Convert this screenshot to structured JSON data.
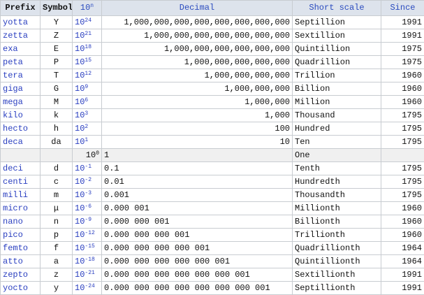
{
  "table": {
    "columns": [
      "Prefix",
      "Symbol",
      {
        "base": "10",
        "exp": "n"
      },
      "Decimal",
      "Short scale",
      "Since"
    ],
    "rows": [
      {
        "prefix": "yotta",
        "symbol": "Y",
        "power": {
          "base": "10",
          "exp": "24"
        },
        "decimal": "1,000,000,000,000,000,000,000,000",
        "scale": "Septillion",
        "since": "1991"
      },
      {
        "prefix": "zetta",
        "symbol": "Z",
        "power": {
          "base": "10",
          "exp": "21"
        },
        "decimal": "1,000,000,000,000,000,000,000",
        "scale": "Sextillion",
        "since": "1991"
      },
      {
        "prefix": "exa",
        "symbol": "E",
        "power": {
          "base": "10",
          "exp": "18"
        },
        "decimal": "1,000,000,000,000,000,000",
        "scale": "Quintillion",
        "since": "1975"
      },
      {
        "prefix": "peta",
        "symbol": "P",
        "power": {
          "base": "10",
          "exp": "15"
        },
        "decimal": "1,000,000,000,000,000",
        "scale": "Quadrillion",
        "since": "1975"
      },
      {
        "prefix": "tera",
        "symbol": "T",
        "power": {
          "base": "10",
          "exp": "12"
        },
        "decimal": "1,000,000,000,000",
        "scale": "Trillion",
        "since": "1960"
      },
      {
        "prefix": "giga",
        "symbol": "G",
        "power": {
          "base": "10",
          "exp": "9"
        },
        "decimal": "1,000,000,000",
        "scale": "Billion",
        "since": "1960"
      },
      {
        "prefix": "mega",
        "symbol": "M",
        "power": {
          "base": "10",
          "exp": "6"
        },
        "decimal": "1,000,000",
        "scale": "Million",
        "since": "1960"
      },
      {
        "prefix": "kilo",
        "symbol": "k",
        "power": {
          "base": "10",
          "exp": "3"
        },
        "decimal": "1,000",
        "scale": "Thousand",
        "since": "1795"
      },
      {
        "prefix": "hecto",
        "symbol": "h",
        "power": {
          "base": "10",
          "exp": "2"
        },
        "decimal": "100",
        "scale": "Hundred",
        "since": "1795"
      },
      {
        "prefix": "deca",
        "symbol": "da",
        "power": {
          "base": "10",
          "exp": "1"
        },
        "decimal": "10",
        "scale": "Ten",
        "since": "1795"
      },
      {
        "power": {
          "base": "10",
          "exp": "0"
        },
        "decimal": "1",
        "scale": "One"
      },
      {
        "prefix": "deci",
        "symbol": "d",
        "power": {
          "base": "10",
          "exp": "-1"
        },
        "decimal": "0.1",
        "scale": "Tenth",
        "since": "1795"
      },
      {
        "prefix": "centi",
        "symbol": "c",
        "power": {
          "base": "10",
          "exp": "-2"
        },
        "decimal": "0.01",
        "scale": "Hundredth",
        "since": "1795"
      },
      {
        "prefix": "milli",
        "symbol": "m",
        "power": {
          "base": "10",
          "exp": "-3"
        },
        "decimal": "0.001",
        "scale": "Thousandth",
        "since": "1795"
      },
      {
        "prefix": "micro",
        "symbol": "μ",
        "power": {
          "base": "10",
          "exp": "-6"
        },
        "decimal": "0.000 001",
        "scale": "Millionth",
        "since": "1960"
      },
      {
        "prefix": "nano",
        "symbol": "n",
        "power": {
          "base": "10",
          "exp": "-9"
        },
        "decimal": "0.000 000 001",
        "scale": "Billionth",
        "since": "1960"
      },
      {
        "prefix": "pico",
        "symbol": "p",
        "power": {
          "base": "10",
          "exp": "-12"
        },
        "decimal": "0.000 000 000 001",
        "scale": "Trillionth",
        "since": "1960"
      },
      {
        "prefix": "femto",
        "symbol": "f",
        "power": {
          "base": "10",
          "exp": "-15"
        },
        "decimal": "0.000 000 000 000 001",
        "scale": "Quadrillionth",
        "since": "1964"
      },
      {
        "prefix": "atto",
        "symbol": "a",
        "power": {
          "base": "10",
          "exp": "-18"
        },
        "decimal": "0.000 000 000 000 000 001",
        "scale": "Quintillionth",
        "since": "1964"
      },
      {
        "prefix": "zepto",
        "symbol": "z",
        "power": {
          "base": "10",
          "exp": "-21"
        },
        "decimal": "0.000 000 000 000 000 000 001",
        "scale": "Sextillionth",
        "since": "1991"
      },
      {
        "prefix": "yocto",
        "symbol": "y",
        "power": {
          "base": "10",
          "exp": "-24"
        },
        "decimal": "0.000 000 000 000 000 000 000 001",
        "scale": "Septillionth",
        "since": "1991"
      }
    ]
  }
}
